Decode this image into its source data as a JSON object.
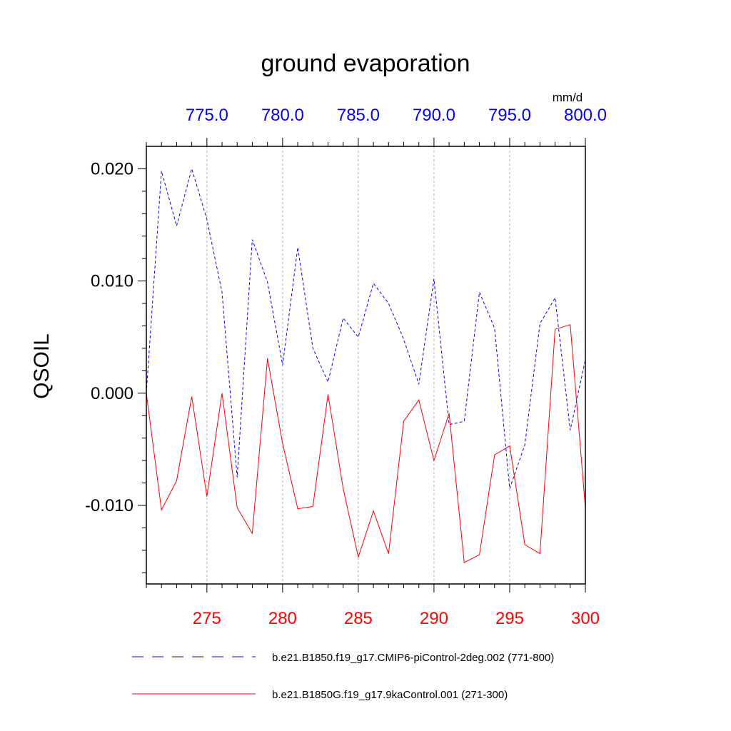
{
  "chart_data": {
    "type": "line",
    "title": "ground evaporation",
    "units": "mm/d",
    "ylabel": "QSOIL",
    "ylim": [
      -0.017,
      0.022
    ],
    "yticks": [
      0.02,
      0.01,
      0.0,
      -0.01
    ],
    "ytick_labels": [
      "0.020",
      "0.010",
      "0.000",
      "-0.010"
    ],
    "x_bottom": {
      "range": [
        271,
        300
      ],
      "ticks": [
        275,
        280,
        285,
        290,
        295,
        300
      ],
      "tick_labels": [
        "275",
        "280",
        "285",
        "290",
        "295",
        "300"
      ],
      "color": "#ff0000"
    },
    "x_top": {
      "range": [
        771,
        800
      ],
      "ticks": [
        775,
        780,
        785,
        790,
        795,
        800
      ],
      "tick_labels": [
        "775.0",
        "780.0",
        "785.0",
        "790.0",
        "795.0",
        "800.0"
      ],
      "color": "#0000ff"
    },
    "grid": "vertical-dashed",
    "series": [
      {
        "name": "b.e21.B1850.f19_g17.CMIP6-piControl-2deg.002 (771-800)",
        "axis": "top",
        "color": "#0000ff",
        "style": "dashed",
        "x": [
          771,
          772,
          773,
          774,
          775,
          776,
          777,
          778,
          779,
          780,
          781,
          782,
          783,
          784,
          785,
          786,
          787,
          788,
          789,
          790,
          791,
          792,
          793,
          794,
          795,
          796,
          797,
          798,
          799,
          800
        ],
        "values": [
          0.0,
          0.0198,
          0.0149,
          0.02,
          0.0155,
          0.009,
          -0.0075,
          0.0137,
          0.0099,
          0.0025,
          0.013,
          0.004,
          0.001,
          0.0067,
          0.005,
          0.0098,
          0.008,
          0.0048,
          0.0008,
          0.0102,
          -0.0028,
          -0.0025,
          0.009,
          0.0058,
          -0.0085,
          -0.0046,
          0.0062,
          0.0085,
          -0.0033,
          0.003
        ]
      },
      {
        "name": "b.e21.B1850G.f19_g17.9kaControl.001 (271-300)",
        "axis": "bottom",
        "color": "#ff0000",
        "style": "solid",
        "x": [
          271,
          272,
          273,
          274,
          275,
          276,
          277,
          278,
          279,
          280,
          281,
          282,
          283,
          284,
          285,
          286,
          287,
          288,
          289,
          290,
          291,
          292,
          293,
          294,
          295,
          296,
          297,
          298,
          299,
          300
        ],
        "values": [
          0.0,
          -0.0104,
          -0.0078,
          -0.0003,
          -0.0092,
          0.0,
          -0.0102,
          -0.0125,
          0.0031,
          -0.0045,
          -0.0103,
          -0.0101,
          -0.0001,
          -0.0085,
          -0.0146,
          -0.0105,
          -0.0143,
          -0.0025,
          -0.0006,
          -0.006,
          -0.0018,
          -0.0151,
          -0.0144,
          -0.0055,
          -0.0047,
          -0.0135,
          -0.0143,
          0.0057,
          0.0061,
          -0.0102
        ]
      }
    ],
    "legend_position": "bottom"
  }
}
